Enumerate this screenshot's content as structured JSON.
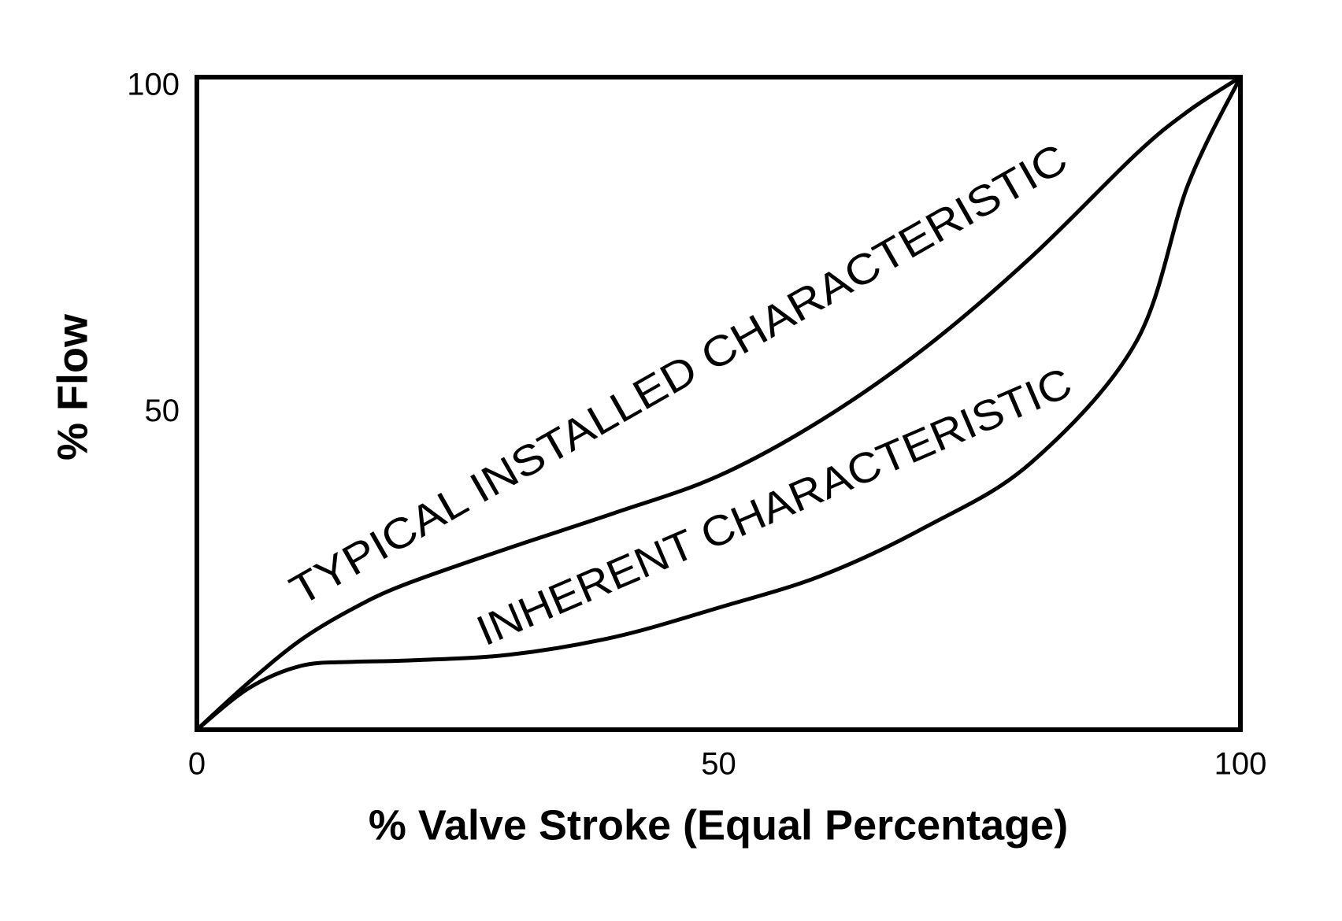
{
  "chart_data": {
    "type": "line",
    "xlabel": "% Valve Stroke (Equal Percentage)",
    "ylabel": "% Flow",
    "x": [
      0,
      5,
      10,
      15,
      20,
      30,
      40,
      50,
      60,
      70,
      80,
      90,
      95,
      100
    ],
    "series": [
      {
        "name": "TYPICAL INSTALLED CHARACTERISTIC",
        "color": "#000000",
        "values": [
          0,
          7.3,
          13.8,
          18.6,
          22.3,
          27.9,
          33.2,
          38.9,
          47.6,
          58.8,
          72.5,
          88.2,
          94.8,
          100
        ]
      },
      {
        "name": "INHERENT CHARACTERISTIC",
        "color": "#000000",
        "values": [
          0,
          6.4,
          9.8,
          10.4,
          10.6,
          11.5,
          14.2,
          18.7,
          23.7,
          31.2,
          41,
          59.4,
          83.6,
          100
        ]
      }
    ],
    "xlim": [
      0,
      100
    ],
    "ylim": [
      0,
      100
    ],
    "xticks": [
      0,
      50,
      100
    ],
    "yticks": [
      50,
      100
    ],
    "grid": false
  }
}
